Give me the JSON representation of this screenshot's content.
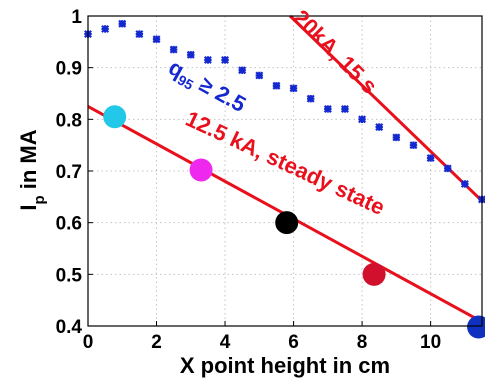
{
  "chart_data": {
    "type": "line",
    "xlabel": "X point height in cm",
    "ylabel_main": "I",
    "ylabel_sub": "p",
    "ylabel_rest": " in MA",
    "xlim": [
      0,
      11.5
    ],
    "ylim": [
      0.4,
      1.0
    ],
    "xticks": [
      "0",
      "2",
      "4",
      "6",
      "8",
      "10"
    ],
    "yticks": [
      "0.4",
      "0.5",
      "0.6",
      "0.7",
      "0.8",
      "0.9",
      "1"
    ],
    "grid": true,
    "series": [
      {
        "name": "20kA, 15 s",
        "style": "line",
        "color": "#e8101c",
        "x": [
          5.9,
          11.5
        ],
        "y": [
          1.0,
          0.642
        ]
      },
      {
        "name": "12.5 kA, steady state",
        "style": "line",
        "color": "#e8101c",
        "x": [
          0,
          11.5
        ],
        "y": [
          0.825,
          0.408
        ]
      },
      {
        "name": "q95 ≥ 2.5",
        "style": "markers",
        "color": "#1428d0",
        "x": [
          0.0,
          0.5,
          1.0,
          1.5,
          2.0,
          2.5,
          3.0,
          3.5,
          4.0,
          4.5,
          5.0,
          5.5,
          6.0,
          6.5,
          7.0,
          7.5,
          8.0,
          8.5,
          9.0,
          9.5,
          10.0,
          10.5,
          11.0,
          11.5
        ],
        "y": [
          0.965,
          0.975,
          0.985,
          0.965,
          0.955,
          0.935,
          0.925,
          0.915,
          0.915,
          0.895,
          0.885,
          0.865,
          0.86,
          0.84,
          0.82,
          0.82,
          0.8,
          0.785,
          0.765,
          0.75,
          0.725,
          0.705,
          0.675,
          0.645
        ]
      }
    ],
    "points": [
      {
        "x": 0.78,
        "y": 0.805,
        "color": "#22c8e8"
      },
      {
        "x": 3.3,
        "y": 0.702,
        "color": "#ee28ee"
      },
      {
        "x": 5.8,
        "y": 0.6,
        "color": "#000000"
      },
      {
        "x": 8.35,
        "y": 0.5,
        "color": "#d0102c"
      },
      {
        "x": 11.4,
        "y": 0.398,
        "color": "#1030c0"
      }
    ],
    "annotations": {
      "a20": "20kA, 15 s",
      "a125": "12.5 kA, steady state",
      "q_main": "q",
      "q_sub": "95",
      "q_rest": " ≥ 2.5"
    }
  }
}
